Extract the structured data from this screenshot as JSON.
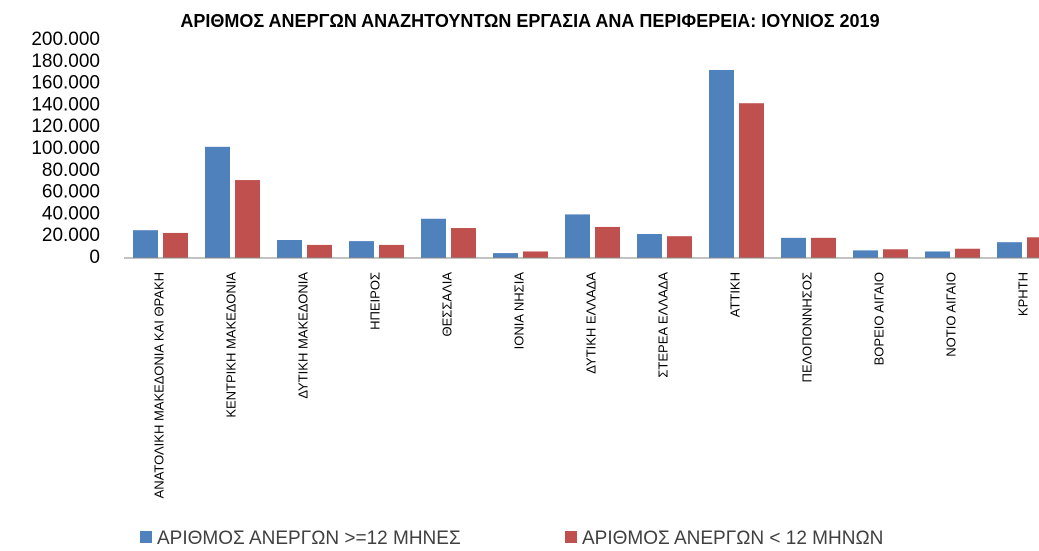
{
  "chart_data": {
    "type": "bar",
    "title": "ΑΡΙΘΜΟΣ ΑΝΕΡΓΩΝ ΑΝΑΖΗΤΟΥΝΤΩΝ ΕΡΓΑΣΙΑ ΑΝΑ ΠΕΡΙΦΕΡΕΙΑ: ΙΟΥΝΙΟΣ 2019",
    "categories": [
      "ΑΝΑΤΟΛΙΚΗ ΜΑΚΕΔΟΝΙΑ ΚΑΙ ΘΡΑΚΗ",
      "ΚΕΝΤΡΙΚΗ ΜΑΚΕΔΟΝΙΑ",
      "ΔΥΤΙΚΗ ΜΑΚΕΔΟΝΙΑ",
      "ΗΠΕΙΡΟΣ",
      "ΘΕΣΣΑΛΙΑ",
      "ΙΟΝΙΑ ΝΗΣΙΑ",
      "ΔΥΤΙΚΗ ΕΛΛΑΔΑ",
      "ΣΤΕΡΕΑ ΕΛΛΑΔΑ",
      "ΑΤΤΙΚΗ",
      "ΠΕΛΟΠΟΝΝΗΣΟΣ",
      "ΒΟΡΕΙΟ ΑΙΓΑΙΟ",
      "ΝΟΤΙΟ ΑΙΓΑΙΟ",
      "ΚΡΗΤΗ"
    ],
    "series": [
      {
        "name": "ΑΡΙΘΜΟΣ ΑΝΕΡΓΩΝ >=12 ΜΗΝΕΣ",
        "color": "#4f81bd",
        "values": [
          25500,
          102000,
          16500,
          15500,
          36000,
          4500,
          40000,
          22000,
          172500,
          18500,
          7000,
          6000,
          14500
        ]
      },
      {
        "name": "ΑΡΙΘΜΟΣ ΑΝΕΡΓΩΝ < 12 ΜΗΝΩΝ",
        "color": "#c0504d",
        "values": [
          23000,
          71500,
          12000,
          12000,
          27500,
          6000,
          28500,
          20000,
          142000,
          18500,
          8000,
          8500,
          19000
        ]
      }
    ],
    "ylim": [
      0,
      200000
    ],
    "yticks": [
      0,
      {
        "value": 20000,
        "label": "20.000"
      },
      {
        "value": 40000,
        "label": "40.000"
      },
      {
        "value": 60000,
        "label": "60.000"
      },
      {
        "value": 80000,
        "label": "80.000"
      },
      {
        "value": 100000,
        "label": "100.000"
      },
      {
        "value": 120000,
        "label": "120.000"
      },
      {
        "value": 140000,
        "label": "140.000"
      },
      {
        "value": 160000,
        "label": "160.000"
      },
      {
        "value": 180000,
        "label": "180.000"
      },
      {
        "value": 200000,
        "label": "200.000"
      }
    ],
    "grid": false
  }
}
